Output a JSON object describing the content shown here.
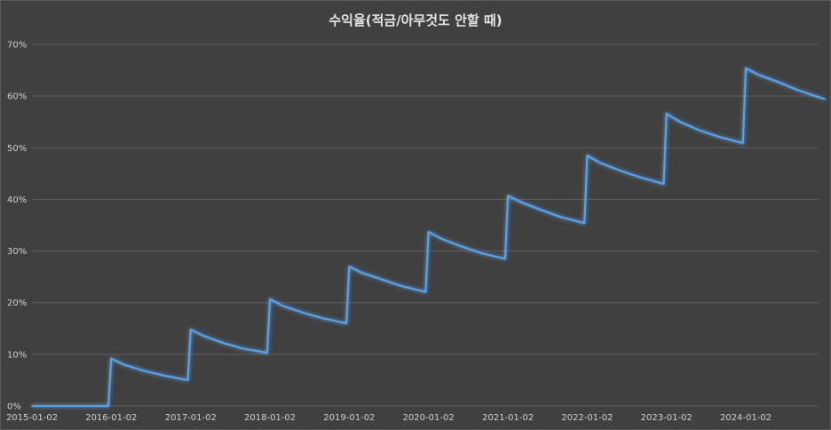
{
  "chart_data": {
    "type": "line",
    "title": "수익율(적금/아무것도 안할 때)",
    "xlabel": "",
    "ylabel": "",
    "ylim": [
      0,
      70
    ],
    "grid": true,
    "line_color": "#5aa0e6",
    "y_ticks": [
      "0%",
      "10%",
      "20%",
      "30%",
      "40%",
      "50%",
      "60%",
      "70%"
    ],
    "x_ticks": [
      "2015-01-02",
      "2016-01-02",
      "2017-01-02",
      "2018-01-02",
      "2019-01-02",
      "2020-01-02",
      "2021-01-02",
      "2022-01-02",
      "2023-01-02",
      "2024-01-02"
    ],
    "series": [
      {
        "x": [
          "2015-01-02",
          "2015-12-20",
          "2016-01-02",
          "2016-03-01",
          "2016-06-01",
          "2016-09-01",
          "2016-12-20",
          "2017-01-02",
          "2017-03-01",
          "2017-06-01",
          "2017-09-01",
          "2017-12-20",
          "2018-01-02",
          "2018-03-01",
          "2018-06-01",
          "2018-09-01",
          "2018-12-20",
          "2019-01-02",
          "2019-03-01",
          "2019-06-01",
          "2019-09-01",
          "2019-12-20",
          "2020-01-02",
          "2020-03-01",
          "2020-06-01",
          "2020-09-01",
          "2020-12-20",
          "2021-01-02",
          "2021-03-01",
          "2021-06-01",
          "2021-09-01",
          "2021-12-20",
          "2022-01-02",
          "2022-03-01",
          "2022-06-01",
          "2022-09-01",
          "2022-12-20",
          "2023-01-02",
          "2023-03-01",
          "2023-06-01",
          "2023-09-01",
          "2023-12-20",
          "2024-01-02",
          "2024-03-01",
          "2024-06-01",
          "2024-09-01",
          "2024-12-31"
        ],
        "values": [
          0,
          0,
          9.2,
          8,
          6.8,
          5.9,
          5,
          14.8,
          13.6,
          12.2,
          11.1,
          10.3,
          20.7,
          19.4,
          18.1,
          17,
          16,
          27,
          25.8,
          24.5,
          23.2,
          22.1,
          33.7,
          32.4,
          30.9,
          29.6,
          28.5,
          40.7,
          39.5,
          38,
          36.6,
          35.4,
          48.5,
          47.1,
          45.6,
          44.3,
          43,
          56.6,
          55.1,
          53.4,
          52.1,
          50.9,
          65.4,
          64.1,
          62.7,
          61.1,
          59.4
        ]
      }
    ]
  }
}
